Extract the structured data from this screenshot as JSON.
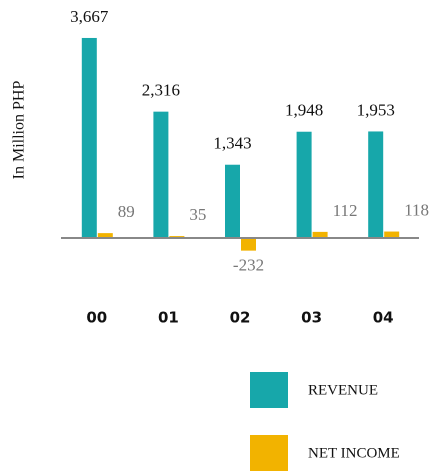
{
  "chart_data": {
    "type": "bar",
    "y_label": "In Million PHP",
    "categories": [
      "00",
      "01",
      "02",
      "03",
      "04"
    ],
    "series": [
      {
        "name": "REVENUE",
        "color": "#17a7aa",
        "values": [
          3667,
          2316,
          1343,
          1948,
          1953
        ],
        "value_labels": [
          "3,667",
          "2,316",
          "1,343",
          "1,948",
          "1,953"
        ]
      },
      {
        "name": "NET INCOME",
        "color": "#f2b300",
        "values": [
          89,
          35,
          -232,
          112,
          118
        ]
      }
    ],
    "ylim": [
      -400,
      4000
    ],
    "legend": "bottom-right"
  }
}
